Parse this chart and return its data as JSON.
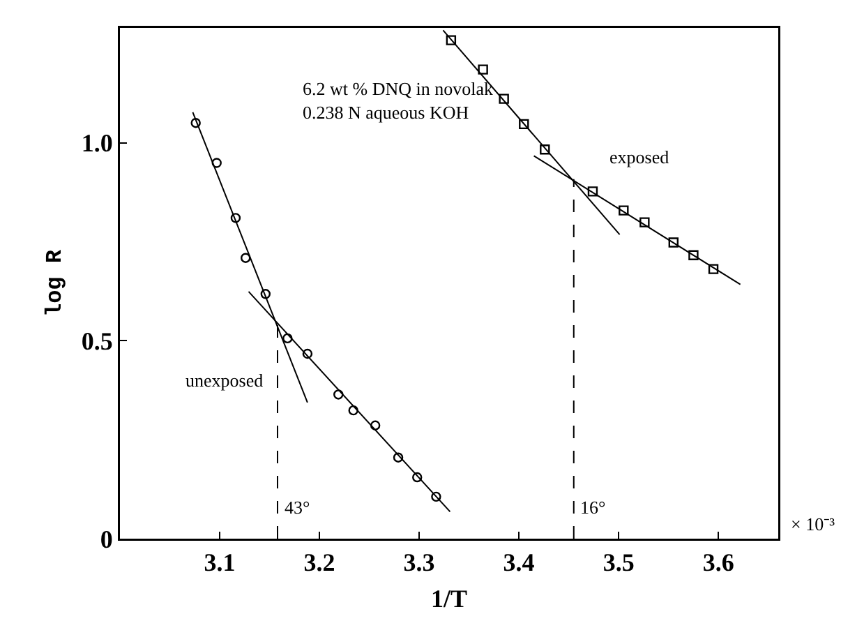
{
  "chart_data": {
    "type": "scatter",
    "xlabel": "1/T",
    "ylabel": "log R",
    "xlim": [
      3.0,
      3.66
    ],
    "ylim": [
      0,
      1.29
    ],
    "xticks": [
      3.1,
      3.2,
      3.3,
      3.4,
      3.5,
      3.6
    ],
    "yticks": [
      0,
      0.5,
      {
        "value": 1,
        "label": "1.0"
      }
    ],
    "grid": false,
    "legend": false,
    "annotations": [
      "6.2 wt % DNQ in novolak",
      "0.238 N aqueous KOH",
      "× 10⁻³",
      {
        "text": "43°",
        "x": 3.158,
        "y": 0.08
      },
      {
        "text": "16°",
        "x": 3.455,
        "y": 0.08
      }
    ],
    "series": [
      {
        "name": "unexposed",
        "type": "scatter",
        "marker": "circle",
        "color": "#000000",
        "x": [
          3.076,
          3.097,
          3.116,
          3.126,
          3.146,
          3.168,
          3.188,
          3.219,
          3.234,
          3.256,
          3.279,
          3.298,
          3.317
        ],
        "values": [
          1.05,
          0.949,
          0.81,
          0.709,
          0.618,
          0.506,
          0.467,
          0.364,
          0.324,
          0.286,
          0.205,
          0.155,
          0.106
        ]
      },
      {
        "name": "exposed",
        "type": "scatter",
        "marker": "square",
        "color": "#000000",
        "x": [
          3.332,
          3.364,
          3.385,
          3.405,
          3.426,
          3.474,
          3.505,
          3.526,
          3.555,
          3.575,
          3.595
        ],
        "values": [
          1.259,
          1.185,
          1.111,
          1.047,
          0.983,
          0.877,
          0.829,
          0.799,
          0.748,
          0.716,
          0.681
        ]
      },
      {
        "type": "line",
        "marker": "none",
        "line_style": "solid",
        "color": "#000000",
        "x": [
          3.073,
          3.188
        ],
        "values": [
          1.077,
          0.344
        ]
      },
      {
        "type": "line",
        "marker": "none",
        "line_style": "solid",
        "color": "#000000",
        "x": [
          3.129,
          3.331
        ],
        "values": [
          0.624,
          0.068
        ]
      },
      {
        "type": "line",
        "marker": "none",
        "line_style": "solid",
        "color": "#000000",
        "x": [
          3.324,
          3.501
        ],
        "values": [
          1.284,
          0.768
        ]
      },
      {
        "type": "line",
        "marker": "none",
        "line_style": "solid",
        "color": "#000000",
        "x": [
          3.415,
          3.622
        ],
        "values": [
          0.967,
          0.642
        ]
      },
      {
        "type": "line",
        "marker": "none",
        "line_style": "dashed",
        "color": "#000000",
        "x": [
          3.158,
          3.158
        ],
        "values": [
          0,
          0.55
        ]
      },
      {
        "type": "line",
        "marker": "none",
        "line_style": "dashed",
        "color": "#000000",
        "x": [
          3.455,
          3.455
        ],
        "values": [
          0,
          0.908
        ]
      }
    ]
  }
}
